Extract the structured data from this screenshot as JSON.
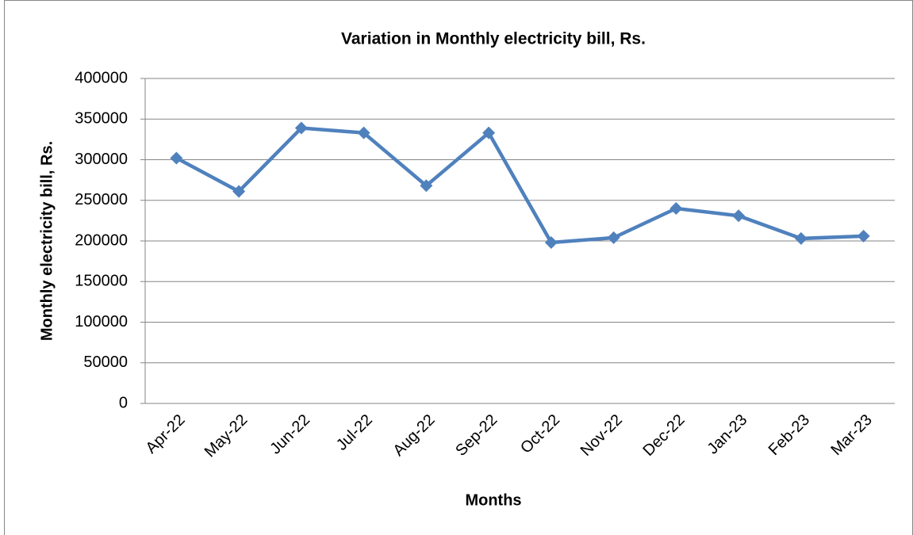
{
  "chart_data": {
    "type": "line",
    "title": "Variation in Monthly electricity bill, Rs.",
    "x_label": "Months",
    "y_label": "Monthly electricity bill, Rs.",
    "categories": [
      "Apr-22",
      "May-22",
      "Jun-22",
      "Jul-22",
      "Aug-22",
      "Sep-22",
      "Oct-22",
      "Nov-22",
      "Dec-22",
      "Jan-23",
      "Feb-23",
      "Mar-23"
    ],
    "series": [
      {
        "name": "Monthly electricity bill",
        "color": "#4f81bd",
        "values": [
          302000,
          261000,
          339000,
          333000,
          268000,
          333000,
          198000,
          204000,
          240000,
          231000,
          203000,
          206000
        ]
      }
    ],
    "ylim": [
      0,
      400000
    ],
    "yticks": [
      0,
      50000,
      100000,
      150000,
      200000,
      250000,
      300000,
      350000,
      400000
    ],
    "grid": true,
    "legend": false
  }
}
